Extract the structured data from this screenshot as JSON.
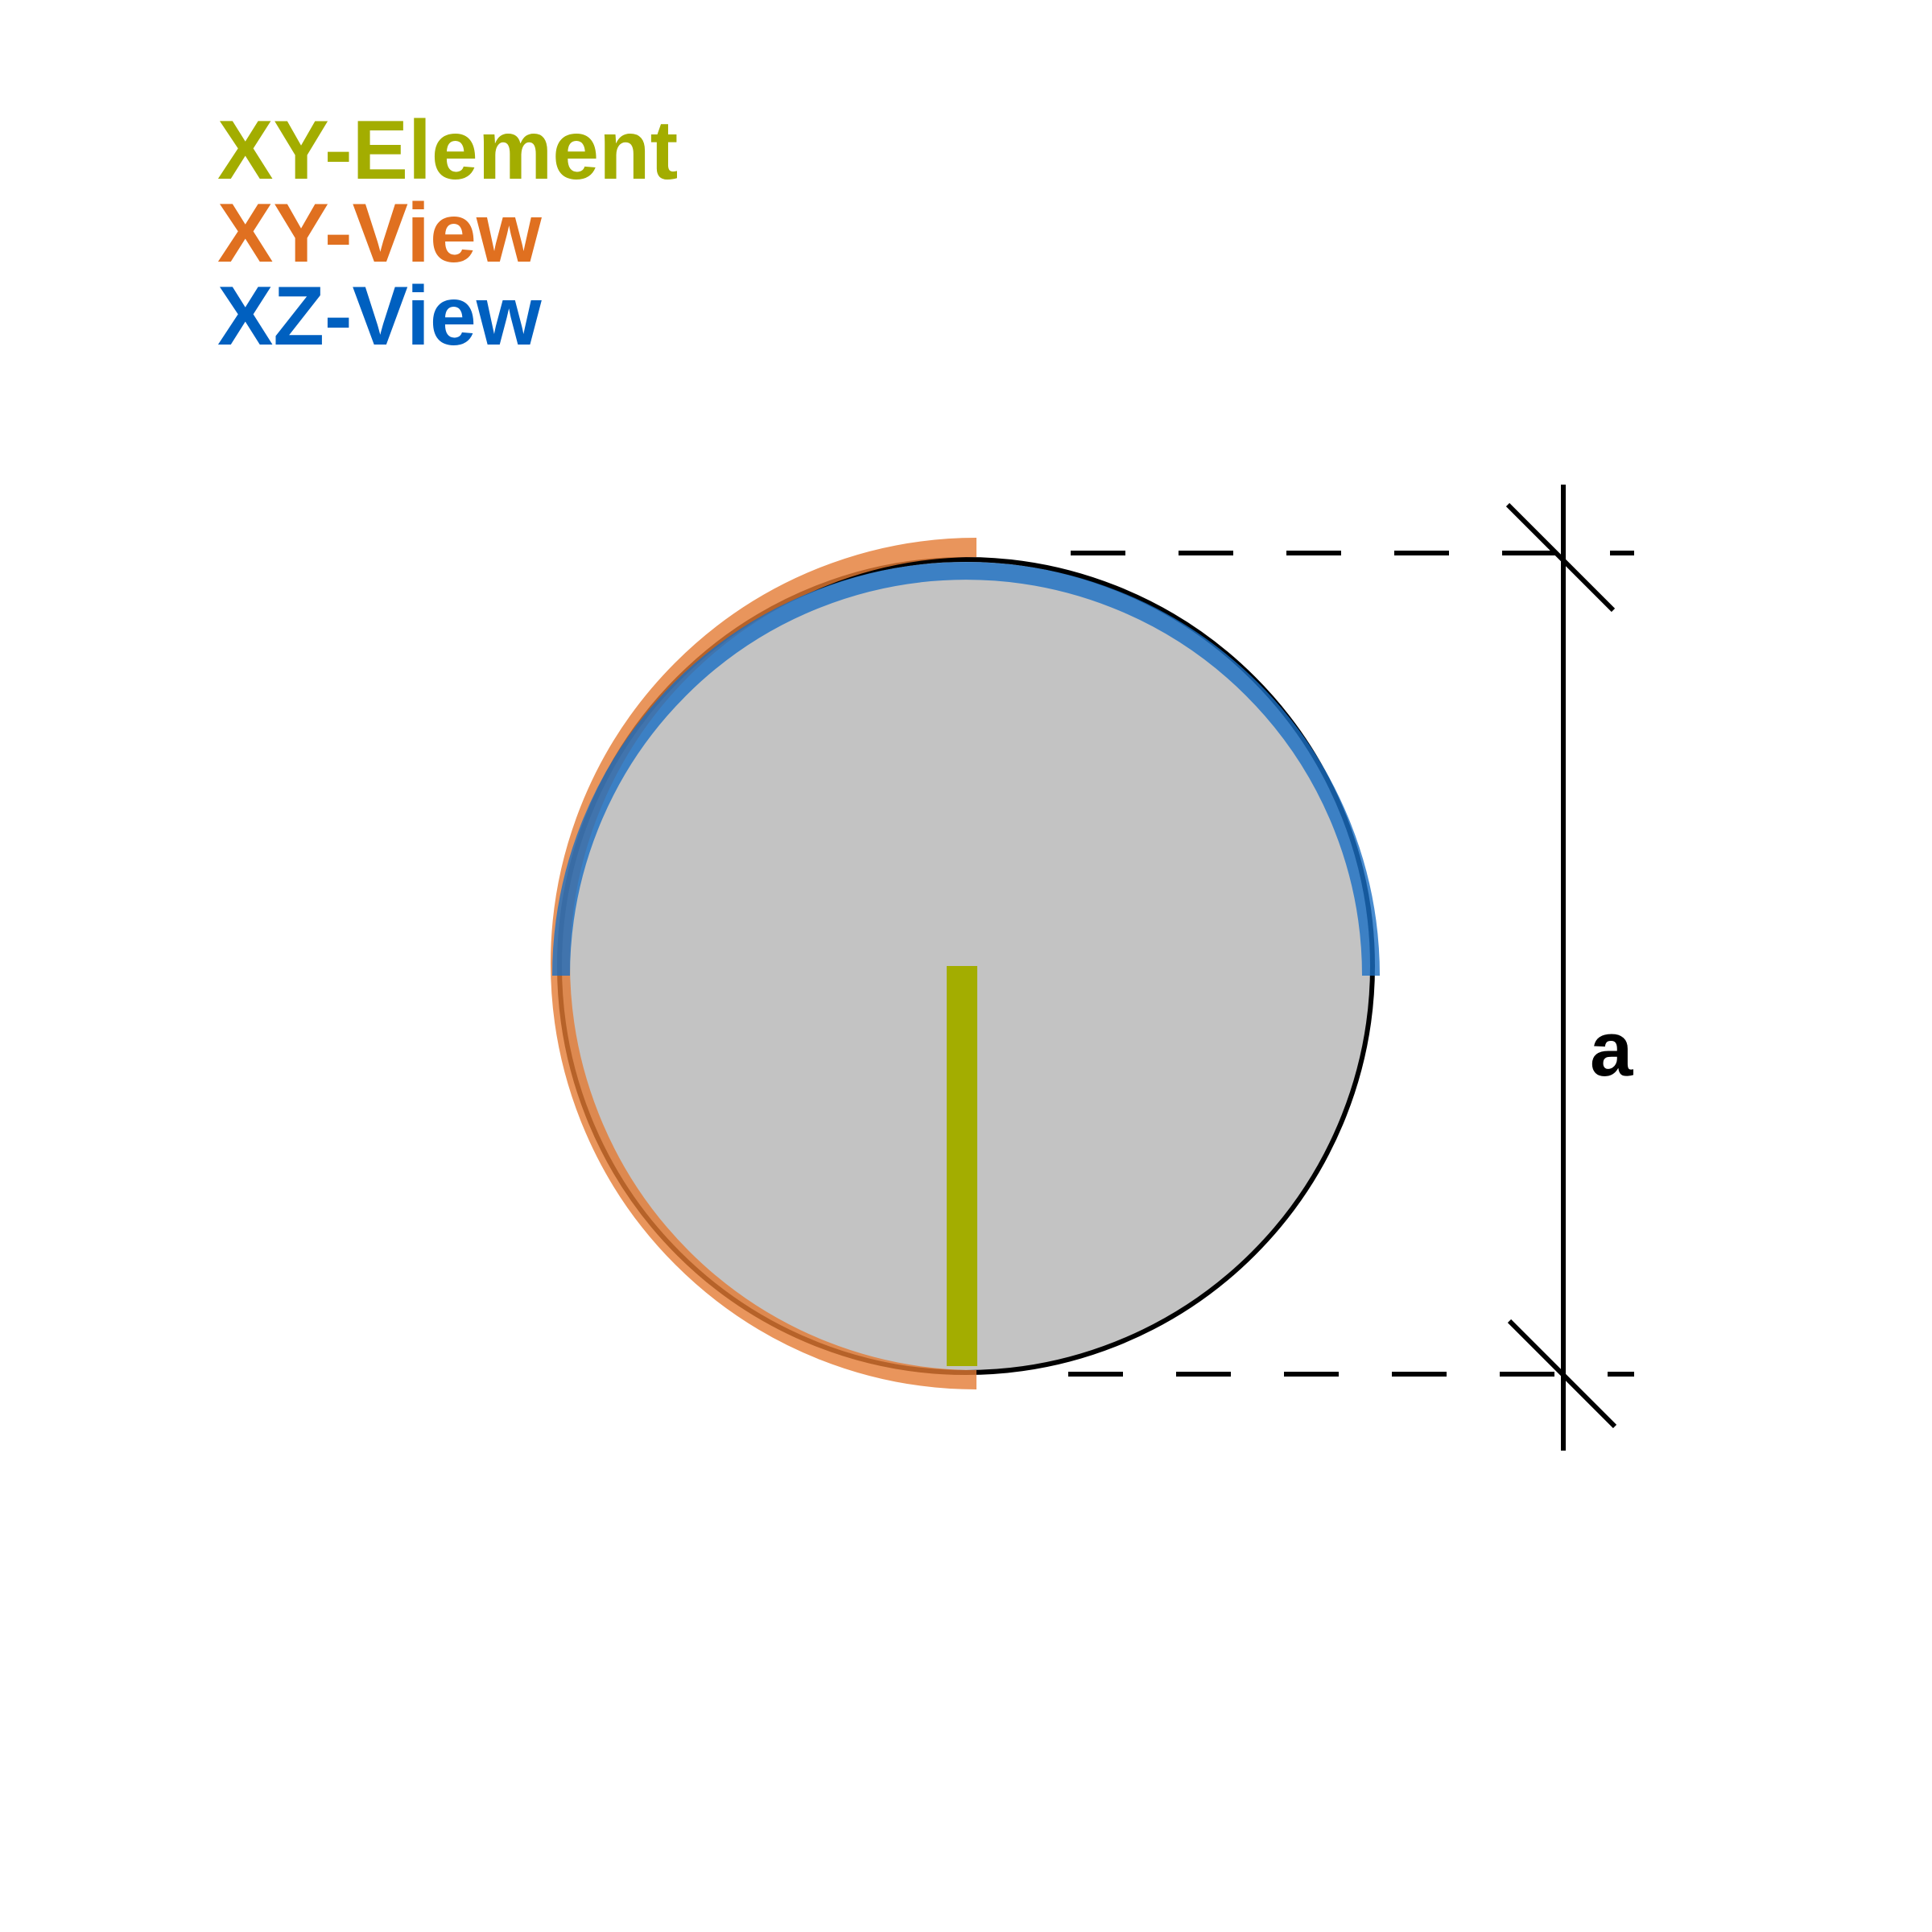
{
  "legend": {
    "items": [
      {
        "label": "XY-Element",
        "color": "#a3ad00"
      },
      {
        "label": "XY-View",
        "color": "#e07020"
      },
      {
        "label": "XZ-View",
        "color": "#0060c0"
      }
    ]
  },
  "dimension": {
    "label": "a"
  },
  "colors": {
    "circle_fill": "#c3c3c3",
    "outline": "#000000",
    "xy_view_arc": "#e8904f",
    "xz_view_arc": "#3a86d0",
    "xy_element_bar": "#a3ad00"
  }
}
